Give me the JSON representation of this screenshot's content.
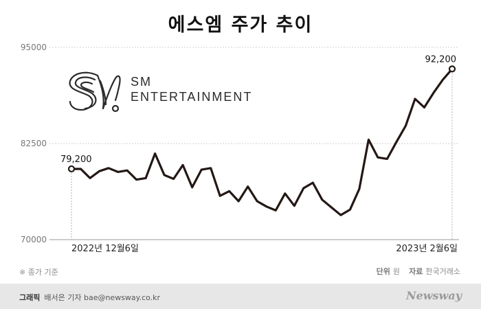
{
  "chart_data": {
    "type": "line",
    "title": "에스엠 주가 추이",
    "yticks": [
      95000,
      82500,
      70000
    ],
    "ytick_labels": [
      "95000",
      "82500",
      "70000"
    ],
    "ylim": [
      70000,
      95000
    ],
    "x_tick_labels": [
      "2022년 12월6일",
      "2023년 2월6일"
    ],
    "series": [
      {
        "values": [
          79200,
          79200,
          78000,
          78900,
          79300,
          78800,
          79000,
          77800,
          78000,
          81200,
          78400,
          77900,
          79700,
          76800,
          79100,
          79300,
          75700,
          76300,
          75000,
          76900,
          75000,
          74300,
          73800,
          76000,
          74400,
          76700,
          77400,
          75200,
          74200,
          73200,
          73900,
          76600,
          83000,
          80700,
          80500,
          82700,
          84800,
          88300,
          87200,
          89100,
          90800,
          92200
        ]
      }
    ],
    "annotations": [
      {
        "label": "79,200",
        "point": "first"
      },
      {
        "label": "92,200",
        "point": "last"
      }
    ],
    "line_color": "#231815",
    "grid": true
  },
  "note": "※ 종가 기준",
  "unit": {
    "label": "단위",
    "value": "원"
  },
  "source": {
    "label": "자료",
    "value": "한국거래소"
  },
  "footer": {
    "credit_label": "그래픽",
    "credit": "배서은 기자  bae@newsway.co.kr",
    "brand": "Newsway"
  },
  "logo": {
    "line1": "SM",
    "line2": "ENTERTAINMENT"
  }
}
